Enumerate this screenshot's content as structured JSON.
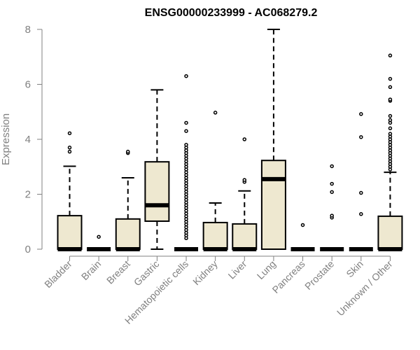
{
  "chart_data": {
    "type": "boxplot",
    "title": "ENSG00000233999 - AC068279.2",
    "ylabel": "Expression",
    "xlabel": "",
    "ylim": [
      0,
      8
    ],
    "yticks": [
      0,
      2,
      4,
      6,
      8
    ],
    "grid": false,
    "box_color": "#EEE8D0",
    "categories": [
      "Bladder",
      "Brain",
      "Breast",
      "Gastric",
      "Hematopoietic cells",
      "Kidney",
      "Liver",
      "Lung",
      "Pancreas",
      "Prostate",
      "Skin",
      "Unknown / Other"
    ],
    "boxes": [
      {
        "q1": 0,
        "median": 0,
        "q3": 1.22,
        "whisker_low": 0,
        "whisker_high": 3.02,
        "outliers": [
          3.55,
          3.7,
          4.22
        ]
      },
      {
        "q1": 0,
        "median": 0,
        "q3": 0,
        "whisker_low": 0,
        "whisker_high": 0,
        "outliers": [
          0.45
        ]
      },
      {
        "q1": 0,
        "median": 0,
        "q3": 1.1,
        "whisker_low": 0,
        "whisker_high": 2.6,
        "outliers": [
          3.5,
          3.55
        ]
      },
      {
        "q1": 1.02,
        "median": 1.6,
        "q3": 3.18,
        "whisker_low": 0,
        "whisker_high": 5.8,
        "outliers": []
      },
      {
        "q1": 0,
        "median": 0,
        "q3": 0,
        "whisker_low": 0,
        "whisker_high": 0,
        "outliers": [
          0.4,
          0.5,
          0.6,
          0.7,
          0.8,
          0.9,
          1.0,
          1.1,
          1.2,
          1.3,
          1.4,
          1.5,
          1.6,
          1.7,
          1.8,
          1.9,
          2.0,
          2.1,
          2.2,
          2.3,
          2.4,
          2.5,
          2.6,
          2.7,
          2.8,
          2.9,
          3.0,
          3.1,
          3.2,
          3.3,
          3.4,
          3.5,
          3.6,
          3.7,
          3.8,
          4.3,
          4.6,
          6.3
        ]
      },
      {
        "q1": 0,
        "median": 0,
        "q3": 0.97,
        "whisker_low": 0,
        "whisker_high": 1.68,
        "outliers": [
          4.97
        ]
      },
      {
        "q1": 0,
        "median": 0,
        "q3": 0.92,
        "whisker_low": 0,
        "whisker_high": 2.12,
        "outliers": [
          2.45,
          2.52,
          4.0
        ]
      },
      {
        "q1": 0,
        "median": 2.55,
        "q3": 3.23,
        "whisker_low": 0,
        "whisker_high": 8.0,
        "outliers": []
      },
      {
        "q1": 0,
        "median": 0,
        "q3": 0,
        "whisker_low": 0,
        "whisker_high": 0,
        "outliers": [
          0.88
        ]
      },
      {
        "q1": 0,
        "median": 0,
        "q3": 0,
        "whisker_low": 0,
        "whisker_high": 0,
        "outliers": [
          1.15,
          1.22,
          2.08,
          2.38,
          3.02
        ]
      },
      {
        "q1": 0,
        "median": 0,
        "q3": 0,
        "whisker_low": 0,
        "whisker_high": 0,
        "outliers": [
          1.28,
          2.05,
          4.08,
          4.92
        ]
      },
      {
        "q1": 0,
        "median": 0,
        "q3": 1.2,
        "whisker_low": 0,
        "whisker_high": 2.8,
        "outliers": [
          2.9,
          3.0,
          3.1,
          3.2,
          3.3,
          3.4,
          3.5,
          3.6,
          3.7,
          3.8,
          3.9,
          4.0,
          4.1,
          4.2,
          4.4,
          4.6,
          4.7,
          4.85,
          5.4,
          5.45,
          5.9,
          6.2,
          7.05
        ]
      }
    ]
  }
}
